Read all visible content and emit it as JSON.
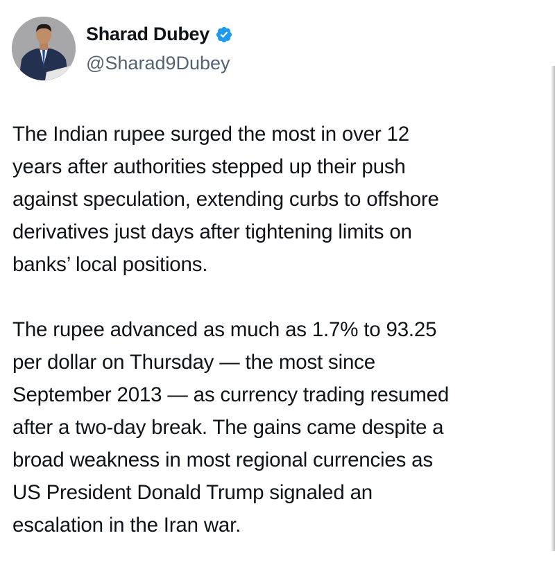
{
  "author": {
    "name": "Sharad Dubey",
    "handle": "@Sharad9Dubey",
    "verified": true,
    "verified_color": "#1d9bf0"
  },
  "tweet": {
    "paragraphs": [
      {
        "lines": [
          "The Indian rupee surged the most in over 12",
          "years after authorities stepped up their push",
          "against speculation, extending curbs to offshore",
          "derivatives just days after tightening limits on",
          "banks’ local positions."
        ]
      },
      {
        "lines": [
          "The rupee advanced as much as 1.7% to 93.25",
          "per dollar on Thursday — the most since",
          "September 2013 — as currency trading resumed",
          "after a two-day break. The gains came despite a",
          "broad weakness in most regional currencies as",
          "US President Donald Trump signaled an",
          "escalation in the Iran war."
        ]
      }
    ]
  }
}
